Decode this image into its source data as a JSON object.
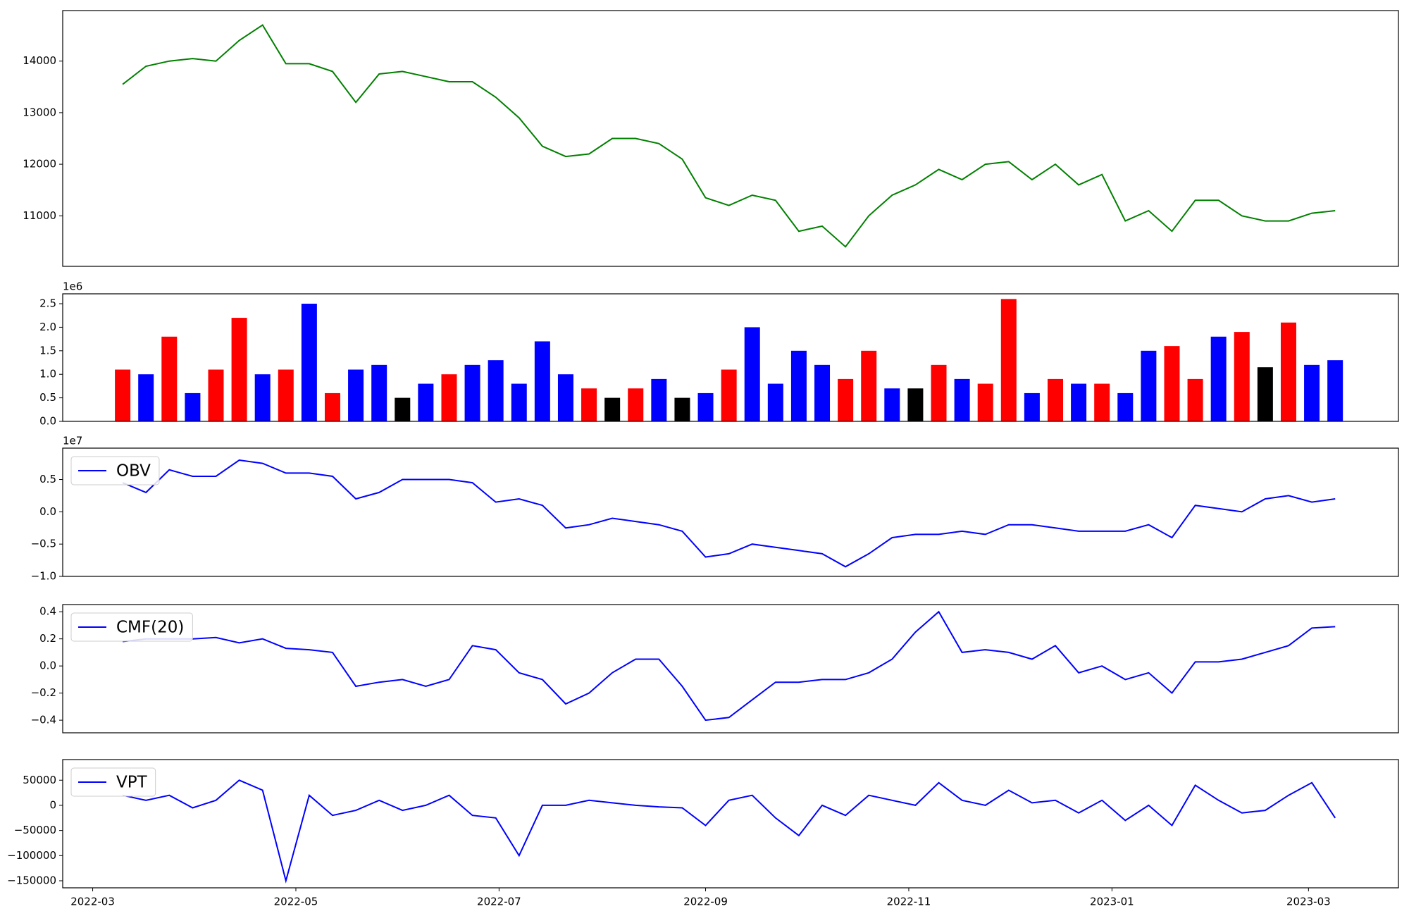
{
  "chart_data": [
    {
      "type": "line",
      "color": "green",
      "x": [
        "2022-03-10",
        "2022-03-17",
        "2022-03-24",
        "2022-03-31",
        "2022-04-07",
        "2022-04-14",
        "2022-04-21",
        "2022-04-28",
        "2022-05-05",
        "2022-05-12",
        "2022-05-19",
        "2022-05-26",
        "2022-06-02",
        "2022-06-09",
        "2022-06-16",
        "2022-06-23",
        "2022-06-30",
        "2022-07-07",
        "2022-07-14",
        "2022-07-21",
        "2022-07-28",
        "2022-08-04",
        "2022-08-11",
        "2022-08-18",
        "2022-08-25",
        "2022-09-01",
        "2022-09-08",
        "2022-09-15",
        "2022-09-22",
        "2022-09-29",
        "2022-10-06",
        "2022-10-13",
        "2022-10-20",
        "2022-10-27",
        "2022-11-03",
        "2022-11-10",
        "2022-11-17",
        "2022-11-24",
        "2022-12-01",
        "2022-12-08",
        "2022-12-15",
        "2022-12-22",
        "2022-12-29",
        "2023-01-05",
        "2023-01-12",
        "2023-01-19",
        "2023-01-26",
        "2023-02-02",
        "2023-02-09",
        "2023-02-16",
        "2023-02-23",
        "2023-03-02",
        "2023-03-09"
      ],
      "values": [
        13550,
        13900,
        14000,
        14050,
        14000,
        14400,
        14700,
        13950,
        13950,
        13800,
        13200,
        13750,
        13800,
        13700,
        13600,
        13600,
        13300,
        12900,
        12350,
        12150,
        12200,
        12500,
        12500,
        12400,
        12100,
        11350,
        11200,
        11400,
        11300,
        10700,
        10800,
        10400,
        11000,
        11400,
        11600,
        11900,
        11700,
        12000,
        12050,
        11700,
        12000,
        11600,
        11800,
        10900,
        11100,
        10700,
        11300,
        11300,
        11000,
        10900,
        10900,
        11050,
        11100
      ],
      "xlim": [
        "2022-02-20",
        "2023-03-28"
      ],
      "ylim": [
        10020,
        14980
      ],
      "yticks": [
        11000,
        12000,
        13000,
        14000
      ]
    },
    {
      "type": "bar",
      "offset_label": "1e6",
      "x": [
        "2022-03-10",
        "2022-03-17",
        "2022-03-24",
        "2022-03-31",
        "2022-04-07",
        "2022-04-14",
        "2022-04-21",
        "2022-04-28",
        "2022-05-05",
        "2022-05-12",
        "2022-05-19",
        "2022-05-26",
        "2022-06-02",
        "2022-06-09",
        "2022-06-16",
        "2022-06-23",
        "2022-06-30",
        "2022-07-07",
        "2022-07-14",
        "2022-07-21",
        "2022-07-28",
        "2022-08-04",
        "2022-08-11",
        "2022-08-18",
        "2022-08-25",
        "2022-09-01",
        "2022-09-08",
        "2022-09-15",
        "2022-09-22",
        "2022-09-29",
        "2022-10-06",
        "2022-10-13",
        "2022-10-20",
        "2022-10-27",
        "2022-11-03",
        "2022-11-10",
        "2022-11-17",
        "2022-11-24",
        "2022-12-01",
        "2022-12-08",
        "2022-12-15",
        "2022-12-22",
        "2022-12-29",
        "2023-01-05",
        "2023-01-12",
        "2023-01-19",
        "2023-01-26",
        "2023-02-02",
        "2023-02-09",
        "2023-02-16",
        "2023-02-23",
        "2023-03-02",
        "2023-03-09"
      ],
      "values": [
        1100000,
        1000000,
        1800000,
        600000,
        1100000,
        2200000,
        1000000,
        1100000,
        2500000,
        600000,
        1100000,
        1200000,
        500000,
        800000,
        1000000,
        1200000,
        1300000,
        800000,
        1700000,
        1000000,
        700000,
        500000,
        700000,
        900000,
        500000,
        600000,
        1100000,
        2000000,
        800000,
        1500000,
        1200000,
        900000,
        1500000,
        700000,
        700000,
        1200000,
        900000,
        800000,
        2600000,
        600000,
        900000,
        800000,
        800000,
        600000,
        1500000,
        1600000,
        900000,
        1800000,
        1900000,
        1150000,
        2100000,
        1200000,
        1300000
      ],
      "colors": [
        "red",
        "blue",
        "red",
        "blue",
        "red",
        "red",
        "blue",
        "red",
        "blue",
        "red",
        "blue",
        "blue",
        "black",
        "blue",
        "red",
        "blue",
        "blue",
        "blue",
        "blue",
        "blue",
        "red",
        "black",
        "red",
        "blue",
        "black",
        "blue",
        "red",
        "blue",
        "blue",
        "blue",
        "blue",
        "red",
        "red",
        "blue",
        "black",
        "red",
        "blue",
        "red",
        "red",
        "blue",
        "red",
        "blue",
        "red",
        "blue",
        "blue",
        "red",
        "red",
        "blue",
        "red",
        "black",
        "red",
        "blue",
        "blue"
      ],
      "xlim": [
        "2022-02-20",
        "2023-03-28"
      ],
      "ylim": [
        0,
        2710000
      ],
      "yticks": [
        {
          "value": 0,
          "label": "0.0"
        },
        {
          "value": 500000,
          "label": "0.5"
        },
        {
          "value": 1000000,
          "label": "1.0"
        },
        {
          "value": 1500000,
          "label": "1.5"
        },
        {
          "value": 2000000,
          "label": "2.0"
        },
        {
          "value": 2500000,
          "label": "2.5"
        }
      ]
    },
    {
      "type": "line",
      "offset_label": "1e7",
      "legend": "upper left",
      "x": [
        "2022-03-10",
        "2022-03-17",
        "2022-03-24",
        "2022-03-31",
        "2022-04-07",
        "2022-04-14",
        "2022-04-21",
        "2022-04-28",
        "2022-05-05",
        "2022-05-12",
        "2022-05-19",
        "2022-05-26",
        "2022-06-02",
        "2022-06-09",
        "2022-06-16",
        "2022-06-23",
        "2022-06-30",
        "2022-07-07",
        "2022-07-14",
        "2022-07-21",
        "2022-07-28",
        "2022-08-04",
        "2022-08-11",
        "2022-08-18",
        "2022-08-25",
        "2022-09-01",
        "2022-09-08",
        "2022-09-15",
        "2022-09-22",
        "2022-09-29",
        "2022-10-06",
        "2022-10-13",
        "2022-10-20",
        "2022-10-27",
        "2022-11-03",
        "2022-11-10",
        "2022-11-17",
        "2022-11-24",
        "2022-12-01",
        "2022-12-08",
        "2022-12-15",
        "2022-12-22",
        "2022-12-29",
        "2023-01-05",
        "2023-01-12",
        "2023-01-19",
        "2023-01-26",
        "2023-02-02",
        "2023-02-09",
        "2023-02-16",
        "2023-02-23",
        "2023-03-02",
        "2023-03-09"
      ],
      "series": [
        {
          "name": "OBV",
          "color": "blue",
          "values": [
            4500000,
            3000000,
            6500000,
            5500000,
            5500000,
            8000000,
            7500000,
            6000000,
            6000000,
            5500000,
            2000000,
            3000000,
            5000000,
            5000000,
            5000000,
            4500000,
            1500000,
            2000000,
            1000000,
            -2500000,
            -2000000,
            -1000000,
            -1500000,
            -2000000,
            -3000000,
            -7000000,
            -6500000,
            -5000000,
            -5500000,
            -6000000,
            -6500000,
            -8500000,
            -6500000,
            -4000000,
            -3500000,
            -3500000,
            -3000000,
            -3500000,
            -2000000,
            -2000000,
            -2500000,
            -3000000,
            -3000000,
            -3000000,
            -2000000,
            -4000000,
            1000000,
            500000,
            0,
            2000000,
            2500000,
            1500000,
            2000000
          ]
        }
      ],
      "xlim": [
        "2022-02-20",
        "2023-03-28"
      ],
      "ylim": [
        -10000000,
        9860000
      ],
      "yticks": [
        {
          "value": -10000000,
          "label": "−1.0"
        },
        {
          "value": -5000000,
          "label": "−0.5"
        },
        {
          "value": 0,
          "label": "0.0"
        },
        {
          "value": 5000000,
          "label": "0.5"
        }
      ]
    },
    {
      "type": "line",
      "legend": "upper left",
      "x": [
        "2022-03-10",
        "2022-03-17",
        "2022-03-24",
        "2022-03-31",
        "2022-04-07",
        "2022-04-14",
        "2022-04-21",
        "2022-04-28",
        "2022-05-05",
        "2022-05-12",
        "2022-05-19",
        "2022-05-26",
        "2022-06-02",
        "2022-06-09",
        "2022-06-16",
        "2022-06-23",
        "2022-06-30",
        "2022-07-07",
        "2022-07-14",
        "2022-07-21",
        "2022-07-28",
        "2022-08-04",
        "2022-08-11",
        "2022-08-18",
        "2022-08-25",
        "2022-09-01",
        "2022-09-08",
        "2022-09-15",
        "2022-09-22",
        "2022-09-29",
        "2022-10-06",
        "2022-10-13",
        "2022-10-20",
        "2022-10-27",
        "2022-11-03",
        "2022-11-10",
        "2022-11-17",
        "2022-11-24",
        "2022-12-01",
        "2022-12-08",
        "2022-12-15",
        "2022-12-22",
        "2022-12-29",
        "2023-01-05",
        "2023-01-12",
        "2023-01-19",
        "2023-01-26",
        "2023-02-02",
        "2023-02-09",
        "2023-02-16",
        "2023-02-23",
        "2023-03-02",
        "2023-03-09"
      ],
      "series": [
        {
          "name": "CMF(20)",
          "color": "blue",
          "values": [
            0.18,
            0.2,
            0.2,
            0.2,
            0.21,
            0.17,
            0.2,
            0.13,
            0.12,
            0.1,
            -0.15,
            -0.12,
            -0.1,
            -0.15,
            -0.1,
            0.15,
            0.12,
            -0.05,
            -0.1,
            -0.28,
            -0.2,
            -0.05,
            0.05,
            0.05,
            -0.15,
            -0.4,
            -0.38,
            -0.25,
            -0.12,
            -0.12,
            -0.1,
            -0.1,
            -0.05,
            0.05,
            0.25,
            0.4,
            0.1,
            0.12,
            0.1,
            0.05,
            0.15,
            -0.05,
            0.0,
            -0.1,
            -0.05,
            -0.2,
            0.03,
            0.03,
            0.05,
            0.1,
            0.15,
            0.28,
            0.29
          ]
        }
      ],
      "xlim": [
        "2022-02-20",
        "2023-03-28"
      ],
      "ylim": [
        -0.493,
        0.453
      ],
      "yticks": [
        {
          "value": -0.4,
          "label": "−0.4"
        },
        {
          "value": -0.2,
          "label": "−0.2"
        },
        {
          "value": 0,
          "label": "0.0"
        },
        0.2,
        0.4
      ]
    },
    {
      "type": "line",
      "legend": "upper left",
      "x": [
        "2022-03-10",
        "2022-03-17",
        "2022-03-24",
        "2022-03-31",
        "2022-04-07",
        "2022-04-14",
        "2022-04-21",
        "2022-04-28",
        "2022-05-05",
        "2022-05-12",
        "2022-05-19",
        "2022-05-26",
        "2022-06-02",
        "2022-06-09",
        "2022-06-16",
        "2022-06-23",
        "2022-06-30",
        "2022-07-07",
        "2022-07-14",
        "2022-07-21",
        "2022-07-28",
        "2022-08-04",
        "2022-08-11",
        "2022-08-18",
        "2022-08-25",
        "2022-09-01",
        "2022-09-08",
        "2022-09-15",
        "2022-09-22",
        "2022-09-29",
        "2022-10-06",
        "2022-10-13",
        "2022-10-20",
        "2022-10-27",
        "2022-11-03",
        "2022-11-10",
        "2022-11-17",
        "2022-11-24",
        "2022-12-01",
        "2022-12-08",
        "2022-12-15",
        "2022-12-22",
        "2022-12-29",
        "2023-01-05",
        "2023-01-12",
        "2023-01-19",
        "2023-01-26",
        "2023-02-02",
        "2023-02-09",
        "2023-02-16",
        "2023-02-23",
        "2023-03-02",
        "2023-03-09"
      ],
      "series": [
        {
          "name": "VPT",
          "color": "blue",
          "values": [
            20000,
            10000,
            20000,
            -5000,
            10000,
            50000,
            30000,
            -150000,
            20000,
            -20000,
            -10000,
            10000,
            -10000,
            0,
            20000,
            -20000,
            -25000,
            -100000,
            0,
            0,
            10000,
            5000,
            0,
            -3000,
            -5000,
            -40000,
            10000,
            20000,
            -25000,
            -60000,
            0,
            -20000,
            20000,
            10000,
            0,
            45000,
            10000,
            0,
            30000,
            5000,
            10000,
            -15000,
            10000,
            -30000,
            0,
            -40000,
            40000,
            10000,
            -15000,
            -10000,
            20000,
            45000,
            -25000
          ]
        }
      ],
      "xlim": [
        "2022-02-20",
        "2023-03-28"
      ],
      "ylim": [
        -164000,
        91000
      ],
      "yticks": [
        {
          "value": -150000,
          "label": "−150000"
        },
        {
          "value": -100000,
          "label": "−100000"
        },
        {
          "value": -50000,
          "label": "−50000"
        },
        0,
        50000
      ],
      "xticks": [
        {
          "value": "2022-03-01",
          "label": "2022-03"
        },
        {
          "value": "2022-05-01",
          "label": "2022-05"
        },
        {
          "value": "2022-07-01",
          "label": "2022-07"
        },
        {
          "value": "2022-09-01",
          "label": "2022-09"
        },
        {
          "value": "2022-11-01",
          "label": "2022-11"
        },
        {
          "value": "2023-01-01",
          "label": "2023-01"
        },
        {
          "value": "2023-03-01",
          "label": "2023-03"
        }
      ]
    }
  ]
}
